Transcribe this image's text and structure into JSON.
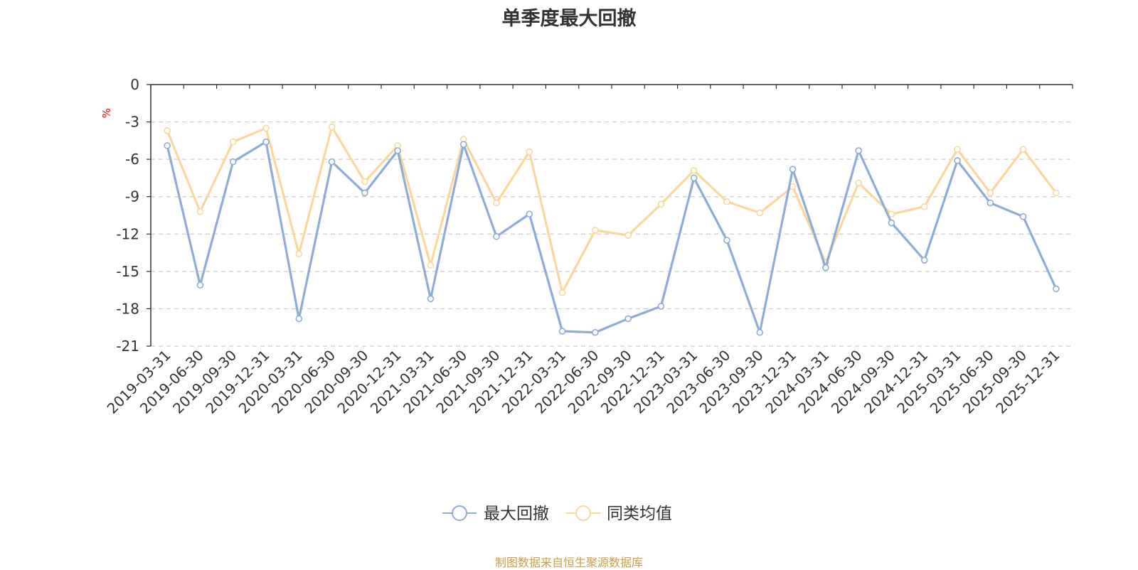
{
  "chart_data": {
    "type": "line",
    "title": "单季度最大回撤",
    "ylabel": "%",
    "ylim": [
      -21,
      0
    ],
    "yticks": [
      0,
      -3,
      -6,
      -9,
      -12,
      -15,
      -18,
      -21
    ],
    "grid": true,
    "legend_position": "bottom-center",
    "categories": [
      "2019-03-31",
      "2019-06-30",
      "2019-09-30",
      "2019-12-31",
      "2020-03-31",
      "2020-06-30",
      "2020-09-30",
      "2020-12-31",
      "2021-03-31",
      "2021-06-30",
      "2021-09-30",
      "2021-12-31",
      "2022-03-31",
      "2022-06-30",
      "2022-09-30",
      "2022-12-31",
      "2023-03-31",
      "2023-06-30",
      "2023-09-30",
      "2023-12-31",
      "2024-03-31",
      "2024-06-30",
      "2024-09-30",
      "2024-12-31",
      "2025-03-31",
      "2025-06-30",
      "2025-09-30",
      "2025-12-31"
    ],
    "series": [
      {
        "name": "最大回撤",
        "color": "#8eacd8",
        "values": [
          -4.9,
          -16.1,
          -6.2,
          -4.6,
          -18.8,
          -6.2,
          -8.7,
          -5.3,
          -17.2,
          -4.8,
          -12.2,
          -10.4,
          -19.8,
          -19.9,
          -18.8,
          -17.8,
          -7.5,
          -12.5,
          -19.9,
          -6.8,
          -14.7,
          -5.3,
          -11.1,
          -14.1,
          -6.1,
          -9.5,
          -10.6,
          -16.4
        ]
      },
      {
        "name": "同类均值",
        "color": "#fad89b",
        "values": [
          -3.7,
          -10.2,
          -4.6,
          -3.5,
          -13.6,
          -3.4,
          -7.8,
          -4.9,
          -14.5,
          -4.4,
          -9.5,
          -5.4,
          -16.7,
          -11.7,
          -12.1,
          -9.6,
          -6.9,
          -9.4,
          -10.3,
          -8.2,
          -14.3,
          -7.9,
          -10.4,
          -9.8,
          -5.2,
          -8.7,
          -5.2,
          -8.7
        ]
      }
    ]
  },
  "source_note": "制图数据来自恒生聚源数据库",
  "colors": {
    "unit": "#ff0000",
    "grid": "#cccccc",
    "axis": "#333333"
  }
}
